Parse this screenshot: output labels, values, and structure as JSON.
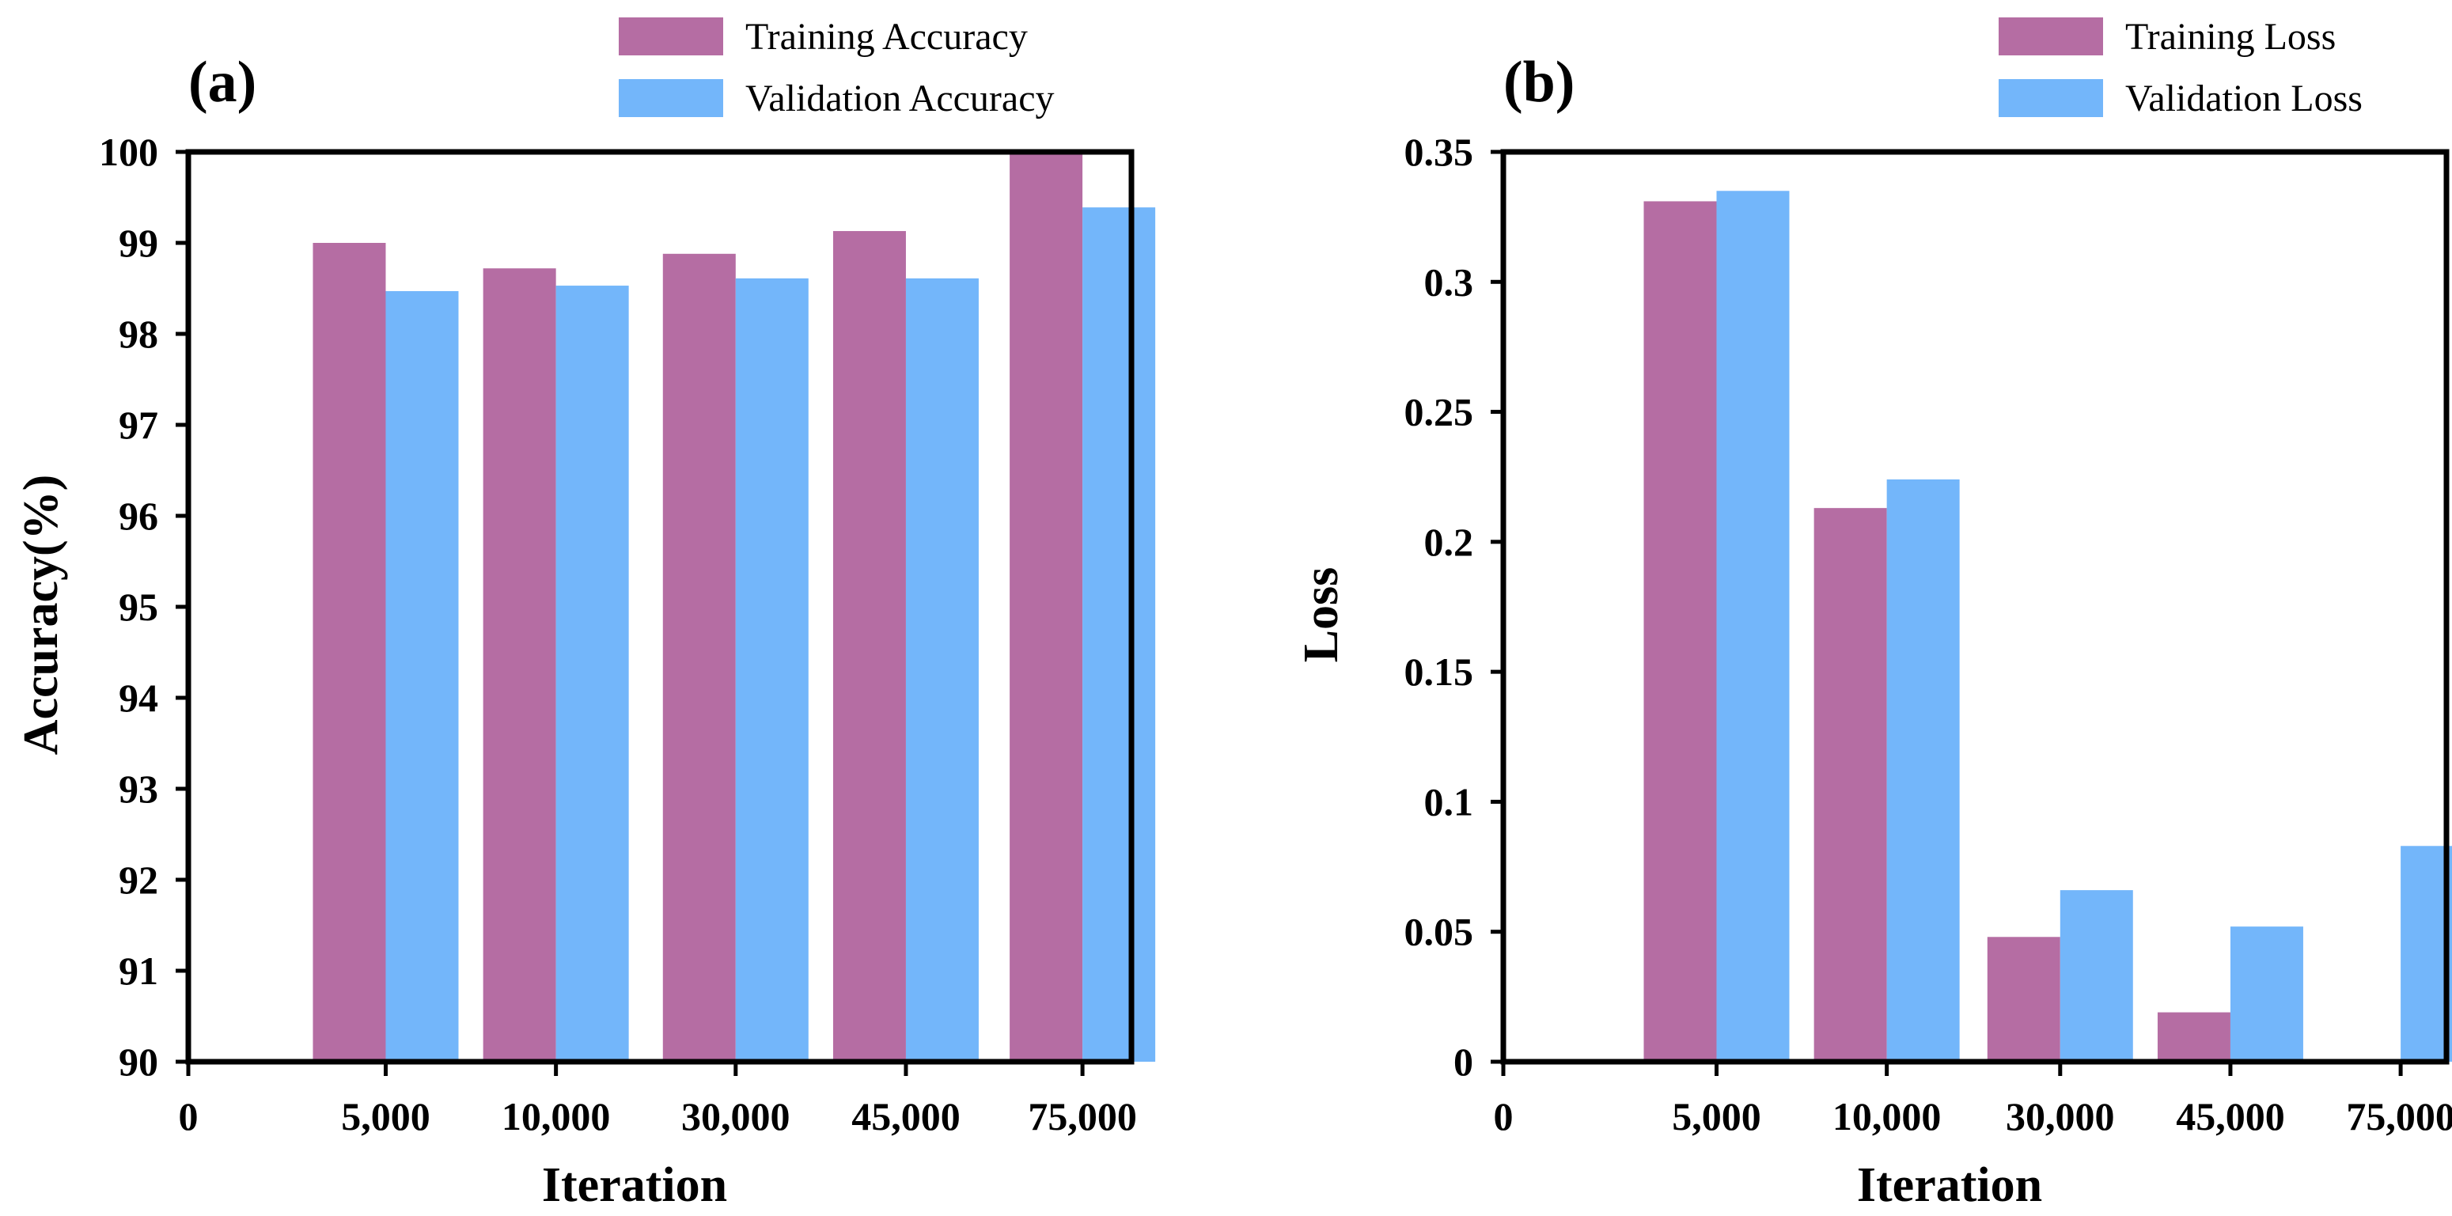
{
  "colors": {
    "training": "#b56da3",
    "validation": "#73b6fa",
    "axis": "#000000"
  },
  "chart_data": [
    {
      "type": "bar",
      "panel_label": "(a)",
      "categories": [
        "5,000",
        "10,000",
        "30,000",
        "45,000",
        "75,000"
      ],
      "x_origin_label": "0",
      "series": [
        {
          "name": "Training Accuracy",
          "values": [
            99.0,
            98.72,
            98.88,
            99.13,
            100.0
          ]
        },
        {
          "name": "Validation Accuracy",
          "values": [
            98.47,
            98.53,
            98.61,
            98.61,
            99.39
          ]
        }
      ],
      "xlabel": "Iteration",
      "ylabel": "Accuracy(%)",
      "ylim": [
        90,
        100
      ],
      "yticks": [
        "90",
        "91",
        "92",
        "93",
        "94",
        "95",
        "96",
        "97",
        "98",
        "99",
        "100"
      ],
      "legend": "top-right",
      "grid": false
    },
    {
      "type": "bar",
      "panel_label": "(b)",
      "categories": [
        "5,000",
        "10,000",
        "30,000",
        "45,000",
        "75,000"
      ],
      "x_origin_label": "0",
      "series": [
        {
          "name": "Training Loss",
          "values": [
            0.331,
            0.213,
            0.048,
            0.019,
            0.001
          ]
        },
        {
          "name": "Validation Loss",
          "values": [
            0.335,
            0.224,
            0.066,
            0.052,
            0.083
          ]
        }
      ],
      "xlabel": "Iteration",
      "ylabel": "Loss",
      "ylim": [
        0,
        0.35
      ],
      "yticks": [
        "0",
        "0.05",
        "0.1",
        "0.15",
        "0.2",
        "0.25",
        "0.3",
        "0.35"
      ],
      "legend": "top-right",
      "grid": false
    }
  ]
}
